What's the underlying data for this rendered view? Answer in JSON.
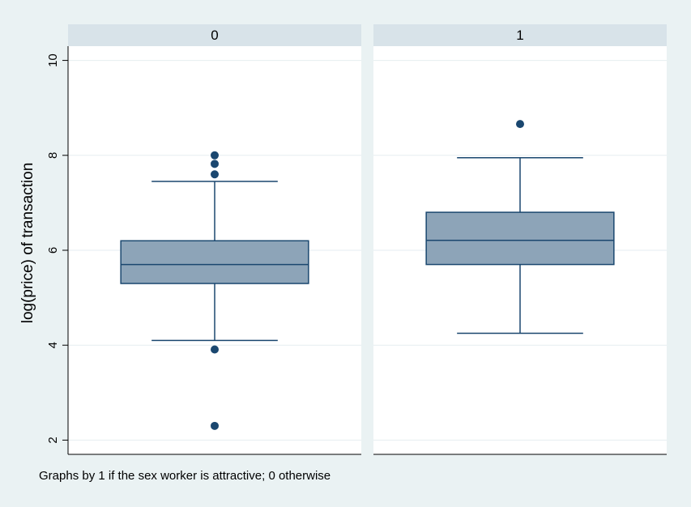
{
  "chart_data": {
    "type": "box",
    "ylabel": "log(price) of transaction",
    "yticks": [
      2,
      4,
      6,
      8,
      10
    ],
    "ylim": [
      1.7,
      10.3
    ],
    "grid": true,
    "note": "Graphs by 1 if the sex worker is attractive; 0 otherwise",
    "panels": [
      {
        "label": "0",
        "box": {
          "whisker_low": 4.1,
          "q1": 5.3,
          "median": 5.7,
          "q3": 6.2,
          "whisker_high": 7.45
        },
        "outliers": [
          8.0,
          7.82,
          7.6,
          3.91,
          2.3
        ]
      },
      {
        "label": "1",
        "box": {
          "whisker_low": 4.25,
          "q1": 5.7,
          "median": 6.21,
          "q3": 6.8,
          "whisker_high": 7.95
        },
        "outliers": [
          8.66
        ]
      }
    ],
    "colors": {
      "background": "#eaf2f3",
      "plot_background": "#ffffff",
      "header": "#d8e3e9",
      "box_fill": "#8da4b8",
      "line": "#1a476f",
      "grid": "#e6eef0"
    }
  }
}
